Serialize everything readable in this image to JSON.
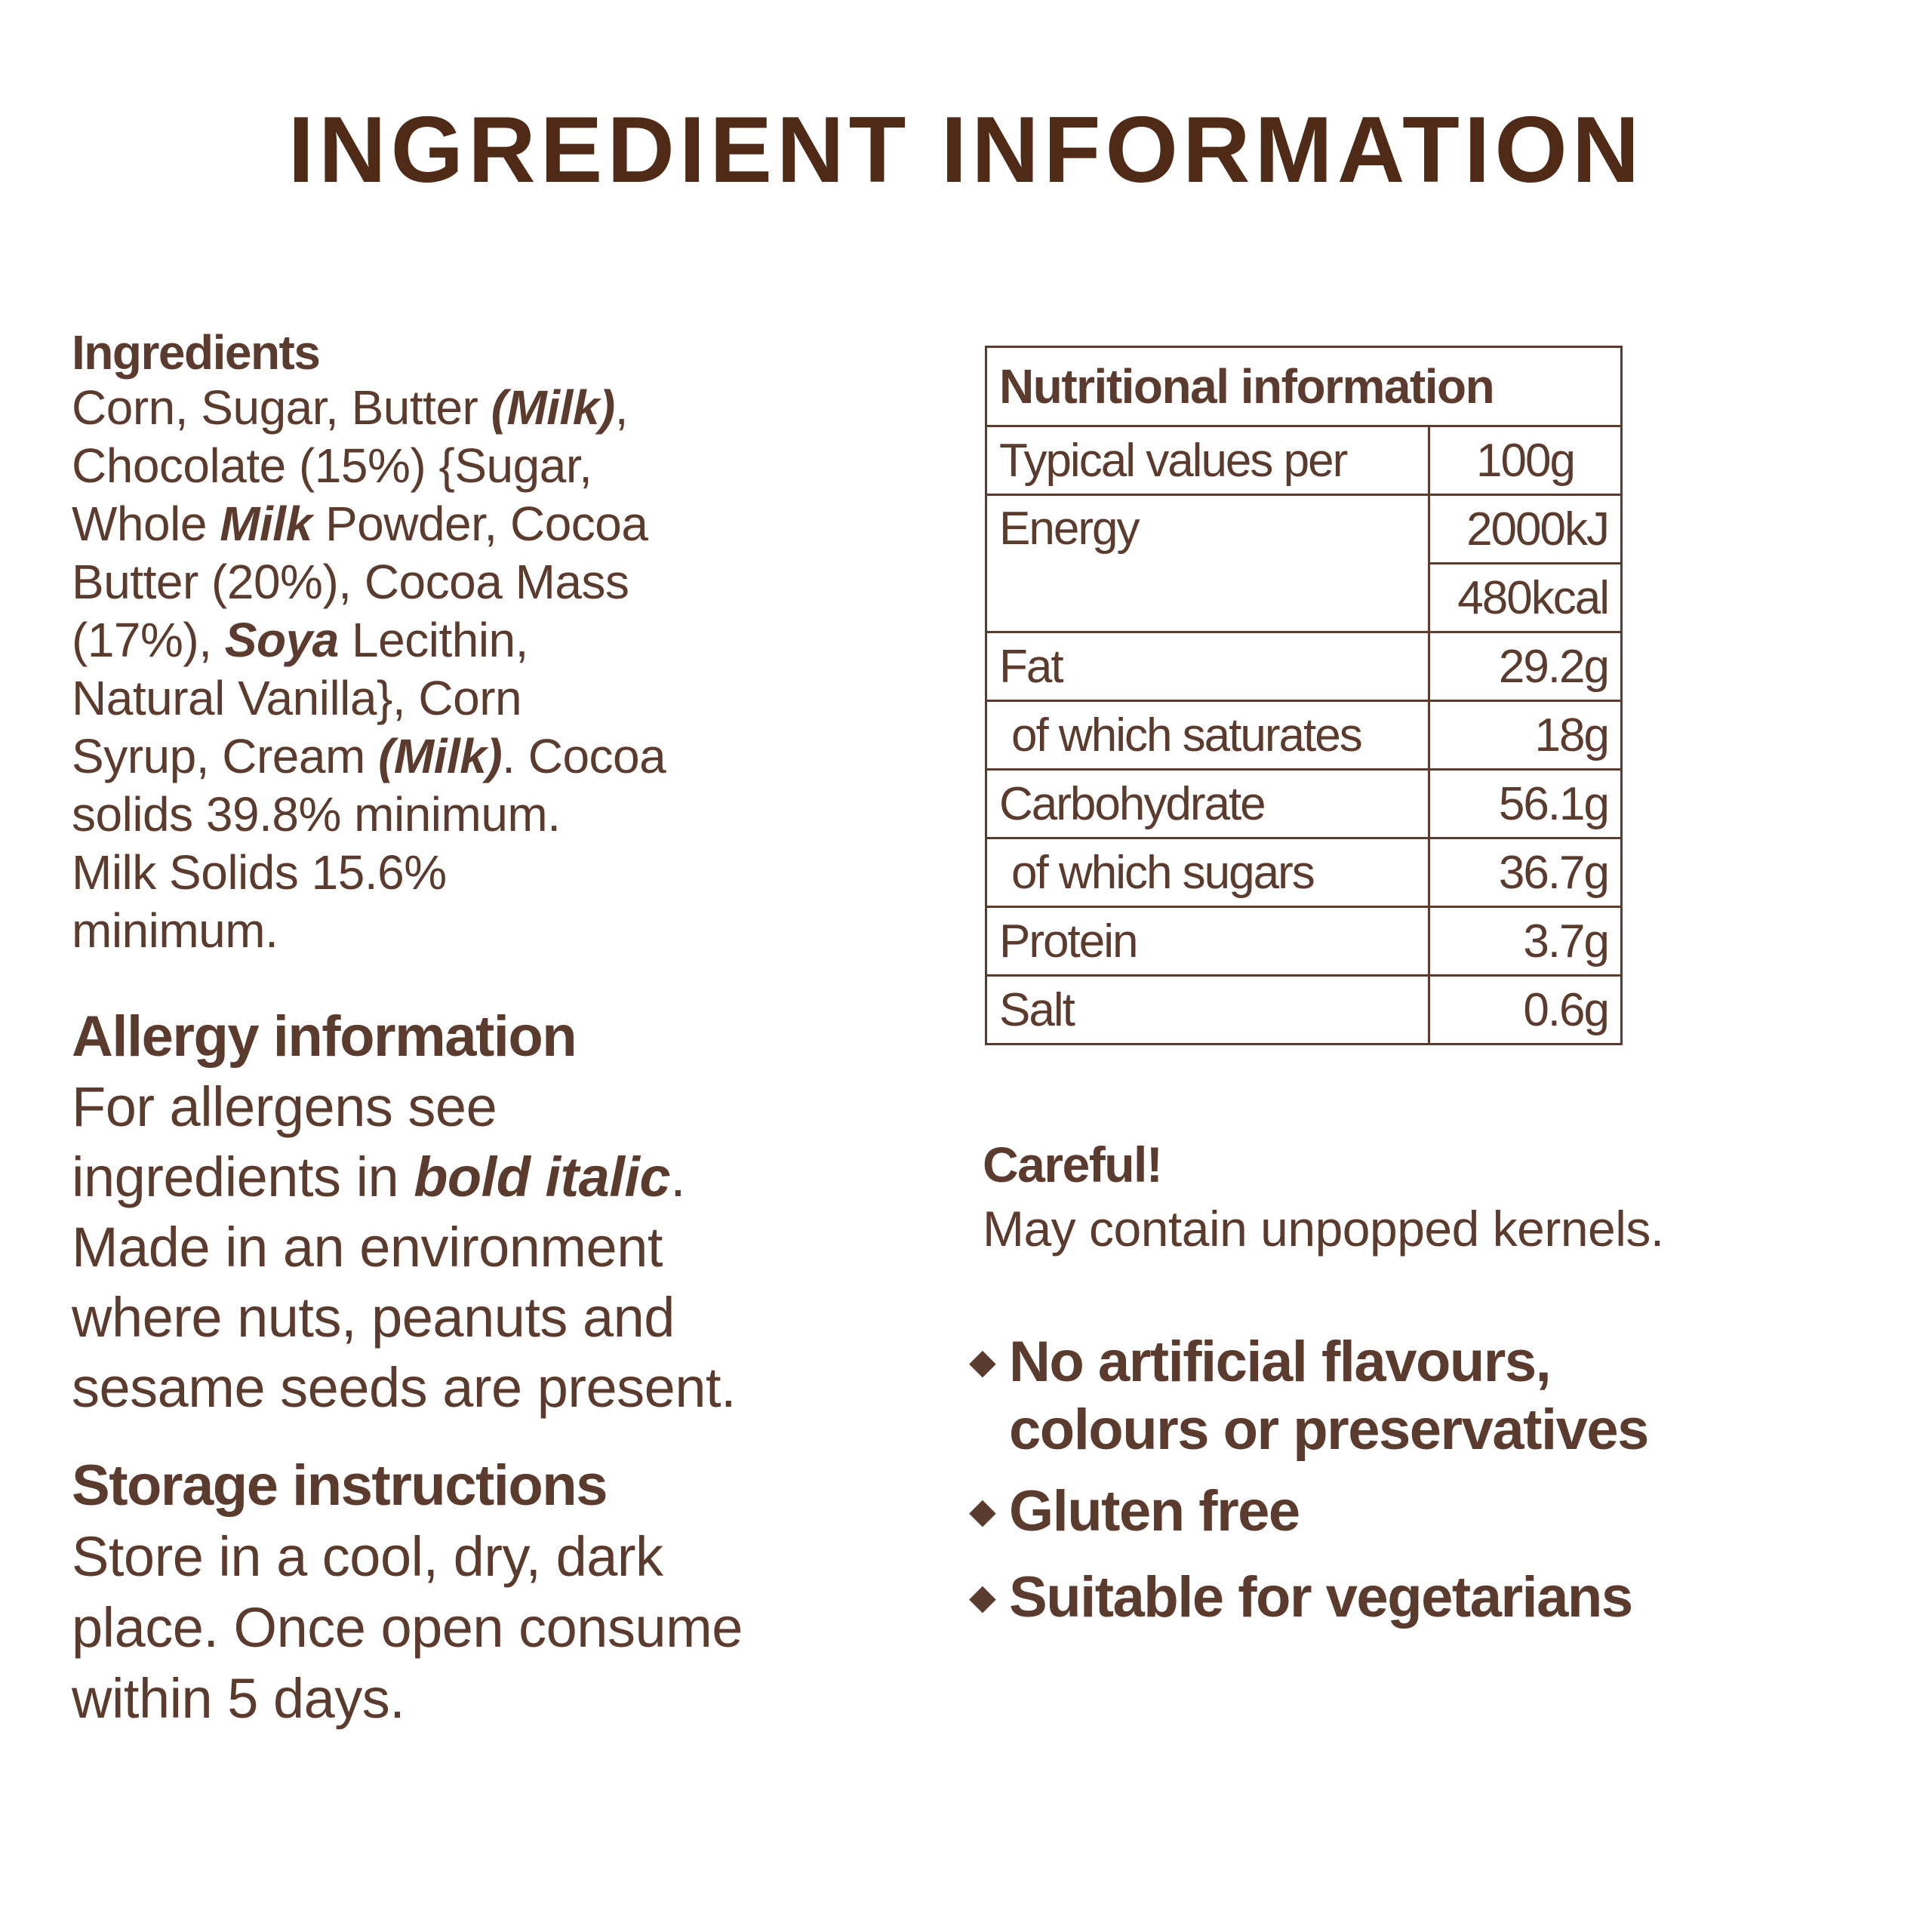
{
  "title": "INGREDIENT INFORMATION",
  "colors": {
    "text": "#5b3b2d",
    "title": "#4e2a17"
  },
  "ingredients": {
    "heading": "Ingredients",
    "lines": [
      [
        {
          "t": "Corn, Sugar, Butter "
        },
        {
          "t": "(Milk)",
          "b": true
        },
        {
          "t": ","
        }
      ],
      [
        {
          "t": "Chocolate (15%) {Sugar,"
        }
      ],
      [
        {
          "t": "Whole "
        },
        {
          "t": "Milk",
          "b": true
        },
        {
          "t": " Powder, Cocoa"
        }
      ],
      [
        {
          "t": "Butter (20%), Cocoa Mass"
        }
      ],
      [
        {
          "t": "(17%), "
        },
        {
          "t": "Soya",
          "b": true
        },
        {
          "t": " Lecithin,"
        }
      ],
      [
        {
          "t": "Natural Vanilla}, Corn"
        }
      ],
      [
        {
          "t": "Syrup, Cream "
        },
        {
          "t": "(Milk)",
          "b": true
        },
        {
          "t": ". Cocoa"
        }
      ],
      [
        {
          "t": "solids 39.8% minimum."
        }
      ],
      [
        {
          "t": "Milk Solids 15.6%"
        }
      ],
      [
        {
          "t": "minimum."
        }
      ]
    ]
  },
  "allergy": {
    "heading": "Allergy information",
    "lines": [
      [
        {
          "t": "For allergens see"
        }
      ],
      [
        {
          "t": "ingredients in "
        },
        {
          "t": "bold italic",
          "b": true
        },
        {
          "t": "."
        }
      ],
      [
        {
          "t": "Made in an environment"
        }
      ],
      [
        {
          "t": "where nuts, peanuts and"
        }
      ],
      [
        {
          "t": "sesame seeds are present."
        }
      ]
    ]
  },
  "storage": {
    "heading": "Storage instructions",
    "lines": [
      [
        {
          "t": "Store in a cool, dry, dark"
        }
      ],
      [
        {
          "t": "place. Once open consume"
        }
      ],
      [
        {
          "t": "within 5 days."
        }
      ]
    ]
  },
  "nutrition": {
    "heading": "Nutritional information",
    "per_label": "Typical values per",
    "per_value": "100g",
    "energy_label": "Energy",
    "energy_kj": "2000kJ",
    "energy_kcal": "480kcal",
    "rows": [
      {
        "label": "Fat",
        "value": "29.2g"
      },
      {
        "label": "of which saturates",
        "value": "18g",
        "indent": true
      },
      {
        "label": "Carbohydrate",
        "value": "56.1g"
      },
      {
        "label": "of which sugars",
        "value": "36.7g",
        "indent": true
      },
      {
        "label": "Protein",
        "value": "3.7g"
      },
      {
        "label": "Salt",
        "value": "0.6g"
      }
    ]
  },
  "careful": {
    "heading": "Careful!",
    "text": "May contain unpopped kernels."
  },
  "bullet_icon": "diamond-icon",
  "claims": [
    [
      "No artificial flavours,",
      "colours or preservatives"
    ],
    [
      "Gluten free"
    ],
    [
      "Suitable for vegetarians"
    ]
  ]
}
